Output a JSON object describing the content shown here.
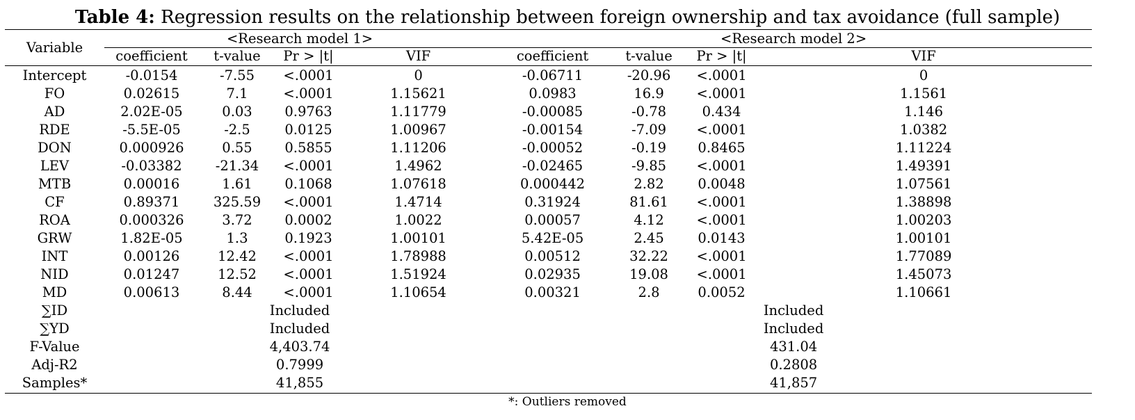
{
  "title": {
    "label": "Table 4:",
    "text": " Regression results on the relationship between foreign ownership and tax avoidance (full sample)"
  },
  "header": {
    "variable_label": "Variable",
    "model1_label": "<Research model 1>",
    "model2_label": "<Research model 2>",
    "columns": [
      "coefficient",
      "t-value",
      "Pr > |t|",
      "VIF",
      "coefficient",
      "t-value",
      "Pr > |t|",
      "VIF"
    ]
  },
  "rows": [
    {
      "variable": "Intercept",
      "m1": [
        "-0.0154",
        "-7.55",
        "<.0001",
        "0"
      ],
      "m2": [
        "-0.06711",
        "-20.96",
        "<.0001",
        "0"
      ]
    },
    {
      "variable": "FO",
      "m1": [
        "0.02615",
        "7.1",
        "<.0001",
        "1.15621"
      ],
      "m2": [
        "0.0983",
        "16.9",
        "<.0001",
        "1.1561"
      ]
    },
    {
      "variable": "AD",
      "m1": [
        "2.02E-05",
        "0.03",
        "0.9763",
        "1.11779"
      ],
      "m2": [
        "-0.00085",
        "-0.78",
        "0.434",
        "1.146"
      ]
    },
    {
      "variable": "RDE",
      "m1": [
        "-5.5E-05",
        "-2.5",
        "0.0125",
        "1.00967"
      ],
      "m2": [
        "-0.00154",
        "-7.09",
        "<.0001",
        "1.0382"
      ]
    },
    {
      "variable": "DON",
      "m1": [
        "0.000926",
        "0.55",
        "0.5855",
        "1.11206"
      ],
      "m2": [
        "-0.00052",
        "-0.19",
        "0.8465",
        "1.11224"
      ]
    },
    {
      "variable": "LEV",
      "m1": [
        "-0.03382",
        "-21.34",
        "<.0001",
        "1.4962"
      ],
      "m2": [
        "-0.02465",
        "-9.85",
        "<.0001",
        "1.49391"
      ]
    },
    {
      "variable": "MTB",
      "m1": [
        "0.00016",
        "1.61",
        "0.1068",
        "1.07618"
      ],
      "m2": [
        "0.000442",
        "2.82",
        "0.0048",
        "1.07561"
      ]
    },
    {
      "variable": "CF",
      "m1": [
        "0.89371",
        "325.59",
        "<.0001",
        "1.4714"
      ],
      "m2": [
        "0.31924",
        "81.61",
        "<.0001",
        "1.38898"
      ]
    },
    {
      "variable": "ROA",
      "m1": [
        "0.000326",
        "3.72",
        "0.0002",
        "1.0022"
      ],
      "m2": [
        "0.00057",
        "4.12",
        "<.0001",
        "1.00203"
      ]
    },
    {
      "variable": "GRW",
      "m1": [
        "1.82E-05",
        "1.3",
        "0.1923",
        "1.00101"
      ],
      "m2": [
        "5.42E-05",
        "2.45",
        "0.0143",
        "1.00101"
      ]
    },
    {
      "variable": "INT",
      "m1": [
        "0.00126",
        "12.42",
        "<.0001",
        "1.78988"
      ],
      "m2": [
        "0.00512",
        "32.22",
        "<.0001",
        "1.77089"
      ]
    },
    {
      "variable": "NID",
      "m1": [
        "0.01247",
        "12.52",
        "<.0001",
        "1.51924"
      ],
      "m2": [
        "0.02935",
        "19.08",
        "<.0001",
        "1.45073"
      ]
    },
    {
      "variable": "MD",
      "m1": [
        "0.00613",
        "8.44",
        "<.0001",
        "1.10654"
      ],
      "m2": [
        "0.00321",
        "2.8",
        "0.0052",
        "1.10661"
      ]
    }
  ],
  "summary_rows": [
    {
      "variable": "∑ID",
      "m1": "Included",
      "m2": "Included"
    },
    {
      "variable": "∑YD",
      "m1": "Included",
      "m2": "Included"
    },
    {
      "variable": "F-Value",
      "m1": "4,403.74",
      "m2": "431.04"
    },
    {
      "variable": "Adj-R2",
      "m1": "0.7999",
      "m2": "0.2808"
    },
    {
      "variable": "Samples*",
      "m1": "41,855",
      "m2": "41,857"
    }
  ],
  "footnote": "*: Outliers removed"
}
